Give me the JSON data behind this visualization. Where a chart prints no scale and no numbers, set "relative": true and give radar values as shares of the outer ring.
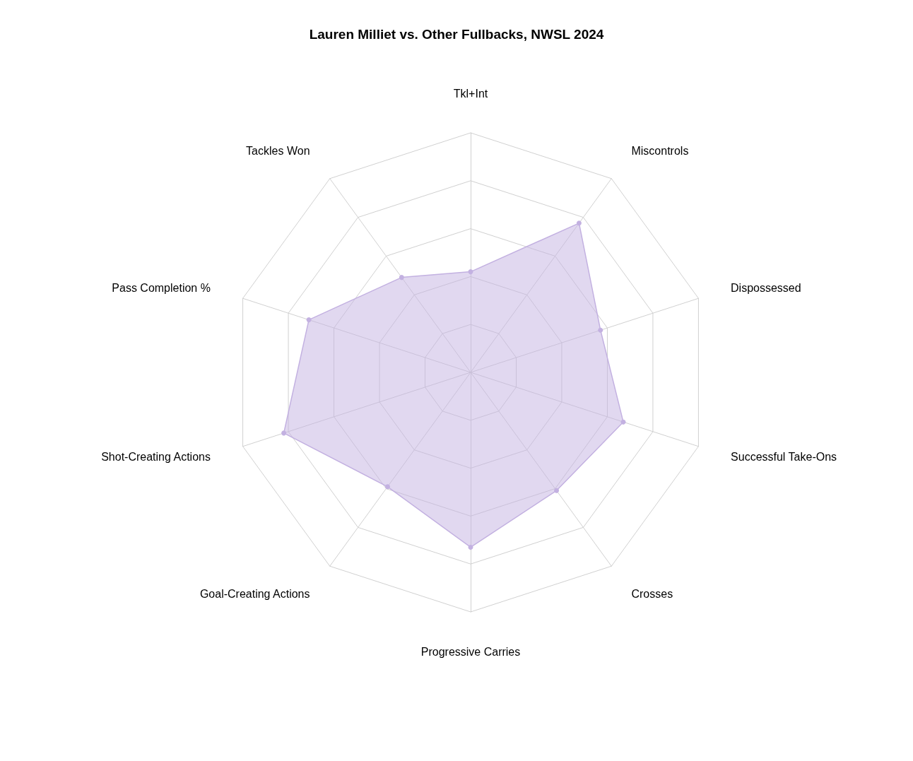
{
  "chart_data": {
    "type": "radar",
    "title": "Lauren Milliet vs. Other Fullbacks, NWSL 2024",
    "categories": [
      "Tkl+Int",
      "Miscontrols",
      "Dispossessed",
      "Successful Take-Ons",
      "Crosses",
      "Progressive Carries",
      "Goal-Creating Actions",
      "Shot-Creating Actions",
      "Pass Completion %",
      "Tackles Won"
    ],
    "relative": true,
    "grid": true,
    "marker": "circle",
    "series": [
      {
        "color": "#c3b1e1",
        "values": [
          0.42,
          0.77,
          0.57,
          0.67,
          0.61,
          0.73,
          0.59,
          0.82,
          0.71,
          0.49
        ]
      }
    ]
  }
}
